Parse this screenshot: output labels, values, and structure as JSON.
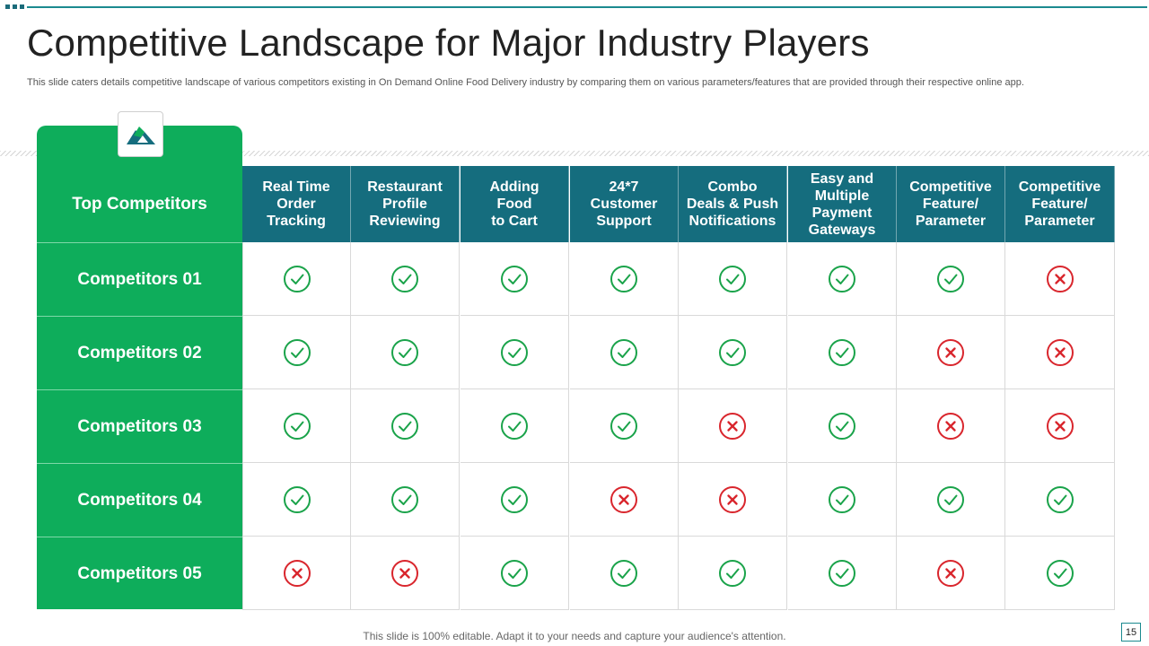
{
  "slide": {
    "title": "Competitive Landscape for Major Industry Players",
    "subtitle": "This slide caters details competitive landscape of various competitors existing in On Demand Online Food Delivery industry by comparing them on various parameters/features that are provided through their respective online app.",
    "footer": "This slide is 100% editable. Adapt it to your needs and capture your audience's attention.",
    "page_number": "15"
  },
  "colors": {
    "green": "#0ead5b",
    "teal": "#156d7e",
    "check": "#1aa34a",
    "cross": "#d9262d"
  },
  "table": {
    "corner_label": "Top Competitors",
    "columns": [
      "Real Time\nOrder\nTracking",
      "Restaurant\nProfile\nReviewing",
      "Adding\nFood\nto Cart",
      "24*7\nCustomer\nSupport",
      "Combo\nDeals & Push\nNotifications",
      "Easy and\nMultiple\nPayment\nGateways",
      "Competitive\nFeature/\nParameter",
      "Competitive\nFeature/\nParameter"
    ],
    "rows": [
      {
        "label": "Competitors 01",
        "values": [
          true,
          true,
          true,
          true,
          true,
          true,
          true,
          false
        ]
      },
      {
        "label": "Competitors 02",
        "values": [
          true,
          true,
          true,
          true,
          true,
          true,
          false,
          false
        ]
      },
      {
        "label": "Competitors 03",
        "values": [
          true,
          true,
          true,
          true,
          false,
          true,
          false,
          false
        ]
      },
      {
        "label": "Competitors 04",
        "values": [
          true,
          true,
          true,
          false,
          false,
          true,
          true,
          true
        ]
      },
      {
        "label": "Competitors 05",
        "values": [
          false,
          false,
          true,
          true,
          true,
          true,
          false,
          true
        ]
      }
    ]
  }
}
